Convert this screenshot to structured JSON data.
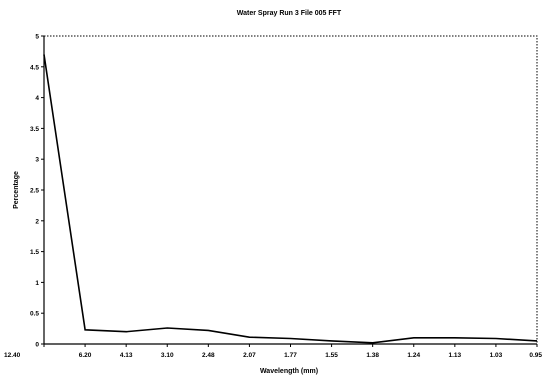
{
  "chart_data": {
    "type": "line",
    "title": "Water Spray Run 3 File 005 FFT",
    "xlabel": "Wavelength (mm)",
    "ylabel": "Percentage",
    "ylim": [
      0,
      5
    ],
    "y_ticks": [
      "0",
      "0.5",
      "1",
      "1.5",
      "2",
      "2.5",
      "3",
      "3.5",
      "4",
      "4.5",
      "5"
    ],
    "categories": [
      "12.40",
      "6.20",
      "4.13",
      "3.10",
      "2.48",
      "2.07",
      "1.77",
      "1.55",
      "1.38",
      "1.24",
      "1.13",
      "1.03",
      "0.95"
    ],
    "series": [
      {
        "values": [
          4.7,
          0.23,
          0.2,
          0.26,
          0.22,
          0.11,
          0.09,
          0.05,
          0.02,
          0.1,
          0.1,
          0.09,
          0.05
        ]
      }
    ],
    "grid": false,
    "legend": "none",
    "line_color": "#000000"
  }
}
